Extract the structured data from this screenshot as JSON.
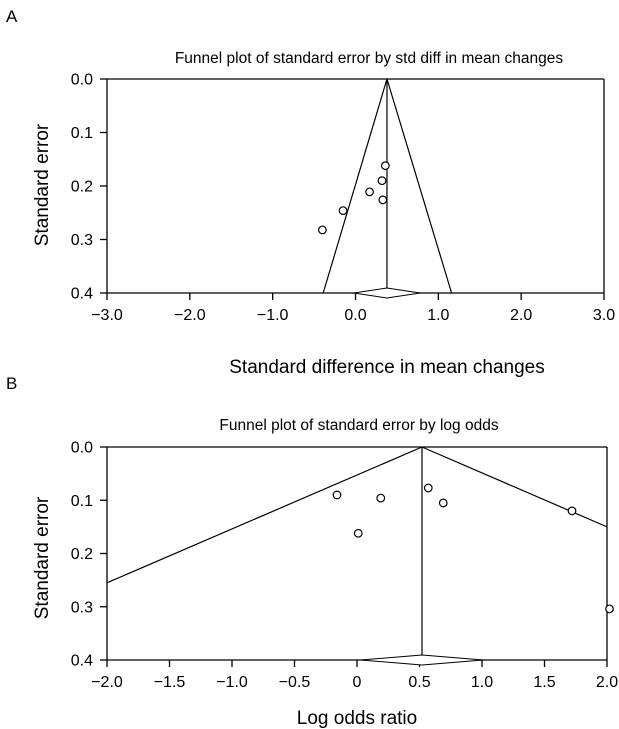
{
  "chart_data": [
    {
      "panel_label": "A",
      "type": "scatter",
      "title": "Funnel plot of standard error by std diff in mean changes",
      "xlabel": "Standard difference in mean changes",
      "ylabel": "Standard error",
      "xlim": [
        -3.0,
        3.0
      ],
      "ylim": [
        0.4,
        0.0
      ],
      "y_inverted": true,
      "x_ticks": [
        "-3.0",
        "-2.0",
        "-1.0",
        "0.0",
        "1.0",
        "2.0",
        "3.0"
      ],
      "y_ticks": [
        "0.0",
        "0.1",
        "0.2",
        "0.3",
        "0.4"
      ],
      "grid": false,
      "points": [
        {
          "x": -0.4,
          "y": 0.282
        },
        {
          "x": -0.15,
          "y": 0.246
        },
        {
          "x": 0.17,
          "y": 0.211
        },
        {
          "x": 0.32,
          "y": 0.19
        },
        {
          "x": 0.36,
          "y": 0.162
        },
        {
          "x": 0.33,
          "y": 0.226
        }
      ],
      "summary_effect": 0.38,
      "funnel_lines": [
        [
          [
            0.38,
            0.0
          ],
          [
            -0.39,
            0.4
          ]
        ],
        [
          [
            0.38,
            0.0
          ],
          [
            1.16,
            0.4
          ]
        ]
      ],
      "summary_diamond": {
        "lower": -0.02,
        "center": 0.38,
        "upper": 0.78,
        "y": 0.4
      }
    },
    {
      "panel_label": "B",
      "type": "scatter",
      "title": "Funnel plot of standard error by log odds",
      "xlabel": "Log odds ratio",
      "ylabel": "Standard error",
      "xlim": [
        -2.0,
        2.0
      ],
      "ylim": [
        0.4,
        0.0
      ],
      "y_inverted": true,
      "x_ticks": [
        "-2.0",
        "-1.5",
        "-1.0",
        "-0.5",
        "0",
        "0.5",
        "1.0",
        "1.5",
        "2.0"
      ],
      "y_ticks": [
        "0.0",
        "0.1",
        "0.2",
        "0.3",
        "0.4"
      ],
      "grid": false,
      "points": [
        {
          "x": -0.16,
          "y": 0.09
        },
        {
          "x": 0.19,
          "y": 0.096
        },
        {
          "x": 0.01,
          "y": 0.162
        },
        {
          "x": 0.57,
          "y": 0.077
        },
        {
          "x": 0.69,
          "y": 0.105
        },
        {
          "x": 1.72,
          "y": 0.12
        },
        {
          "x": 2.02,
          "y": 0.304
        }
      ],
      "summary_effect": 0.52,
      "funnel_lines": [
        [
          [
            0.52,
            0.0
          ],
          [
            -2.0,
            0.255
          ]
        ],
        [
          [
            0.52,
            0.0
          ],
          [
            2.0,
            0.15
          ]
        ]
      ],
      "summary_diamond": {
        "lower": 0.03,
        "center": 0.52,
        "upper": 1.01,
        "y": 0.4
      }
    }
  ]
}
